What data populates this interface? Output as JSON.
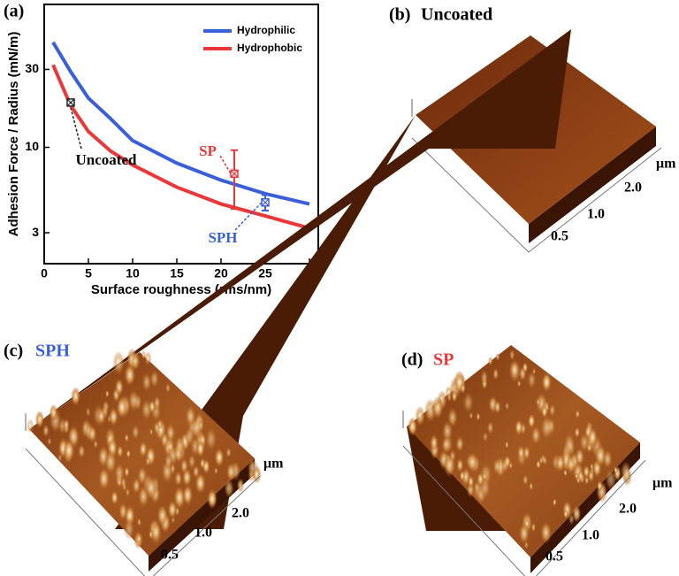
{
  "chart_data": {
    "type": "line",
    "label": "(a)",
    "x_label": "Surface roughness (rms/nm)",
    "y_label": "Adhesion Force / Radius (mN/m)",
    "x": [
      1,
      3,
      5,
      7.5,
      10,
      15,
      20,
      25,
      30
    ],
    "series": [
      {
        "name": "Hydrophilic",
        "color": "#3b5fd8",
        "values": [
          44,
          29,
          20,
          15,
          11,
          8,
          6.3,
          5.2,
          4.5
        ]
      },
      {
        "name": "Hydrophobic",
        "color": "#e8383a",
        "values": [
          32,
          18,
          12.5,
          9.5,
          7.8,
          5.7,
          4.5,
          3.8,
          3.2
        ]
      }
    ],
    "points": [
      {
        "name": "Uncoated",
        "x": 3,
        "value": 18.8,
        "color": "#222222"
      },
      {
        "name": "SP",
        "x": 21.5,
        "value": 6.9,
        "error": 2.7,
        "color": "#e8383a"
      },
      {
        "name": "SPH",
        "x": 25,
        "value": 4.6,
        "error": 0.5,
        "color": "#3b5fd8"
      }
    ],
    "xlim": [
      0,
      31
    ],
    "xticks": [
      0,
      5,
      10,
      15,
      20,
      25,
      30
    ],
    "ylim": [
      1.94,
      75
    ],
    "yticks": [
      3,
      10,
      30
    ],
    "log_y": true,
    "legend": "upper right"
  },
  "panels": [
    {
      "label": "(b)",
      "title": "Uncoated",
      "title_color": "#000000",
      "unit": "μm",
      "axis_labels": [
        "2.0",
        "1.0",
        "0.5"
      ]
    },
    {
      "label": "(c)",
      "title": "SPH",
      "title_color": "#3b5fd8",
      "unit": "μm",
      "axis_labels": [
        "2.0",
        "1.0",
        "0.5"
      ]
    },
    {
      "label": "(d)",
      "title": "SP",
      "title_color": "#e8383a",
      "unit": "μm",
      "axis_labels": [
        "2.0",
        "1.0",
        "0.5"
      ]
    }
  ]
}
